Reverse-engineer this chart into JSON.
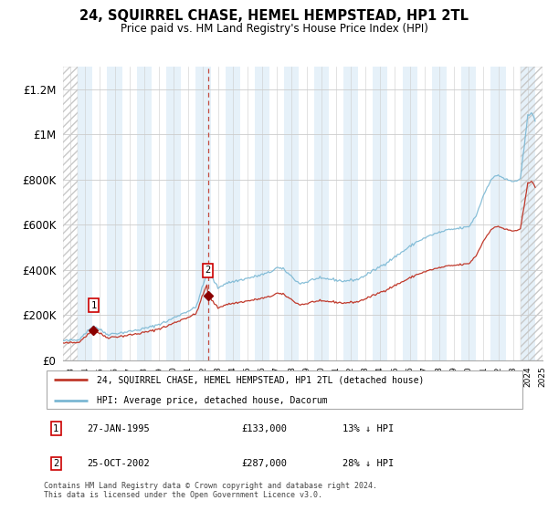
{
  "title": "24, SQUIRREL CHASE, HEMEL HEMPSTEAD, HP1 2TL",
  "subtitle": "Price paid vs. HM Land Registry's House Price Index (HPI)",
  "legend_line1": "24, SQUIRREL CHASE, HEMEL HEMPSTEAD, HP1 2TL (detached house)",
  "legend_line2": "HPI: Average price, detached house, Dacorum",
  "footnote": "Contains HM Land Registry data © Crown copyright and database right 2024.\nThis data is licensed under the Open Government Licence v3.0.",
  "sale1_date": "27-JAN-1995",
  "sale1_price": "£133,000",
  "sale1_hpi": "13% ↓ HPI",
  "sale2_date": "25-OCT-2002",
  "sale2_price": "£287,000",
  "sale2_hpi": "28% ↓ HPI",
  "hpi_color": "#7bb8d4",
  "price_color": "#c0392b",
  "sale_dot_color": "#8b0000",
  "bg_shading_color": "#d6e8f5",
  "grid_color": "#cccccc",
  "hatch_color": "#c0c0c0",
  "ylim": [
    0,
    1300000
  ],
  "yticks": [
    0,
    200000,
    400000,
    600000,
    800000,
    1000000,
    1200000
  ],
  "ytick_labels": [
    "£0",
    "£200K",
    "£400K",
    "£600K",
    "£800K",
    "£1M",
    "£1.2M"
  ],
  "sale1_x": 1995.07,
  "sale1_y": 133000,
  "sale2_x": 2002.82,
  "sale2_y": 287000,
  "xmin": 1993,
  "xmax": 2025.5
}
